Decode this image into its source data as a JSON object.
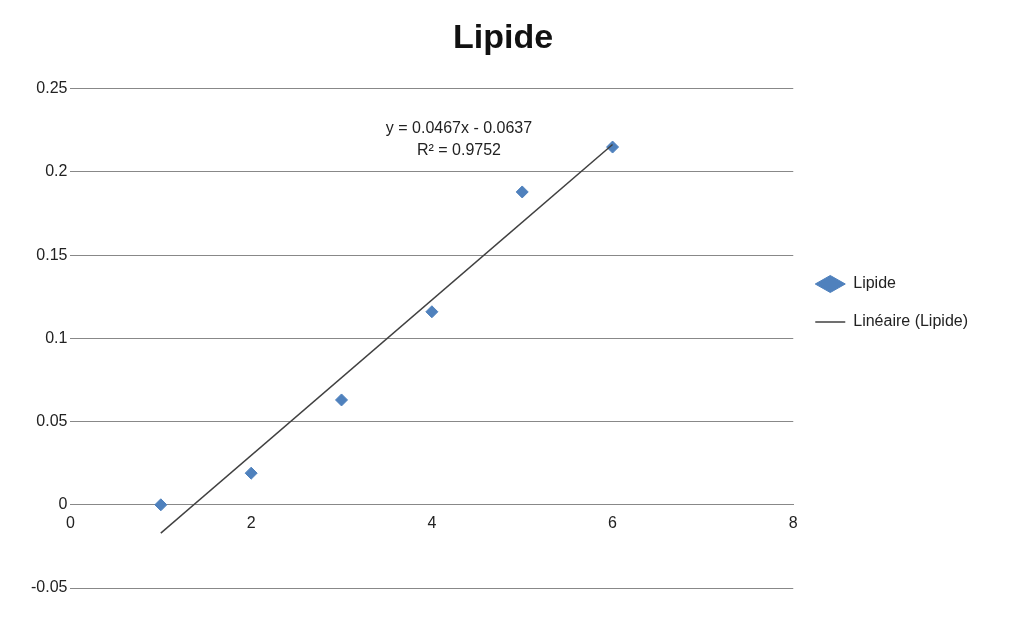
{
  "chart_data": {
    "type": "scatter",
    "title": "Lipide",
    "legend": "right",
    "grid": "y",
    "series": [
      {
        "name": "Lipide",
        "marker": "diamond",
        "color": "#4f81bd",
        "x": [
          1,
          2,
          3,
          4,
          5,
          6
        ],
        "values": [
          0,
          0.019,
          0.063,
          0.116,
          0.188,
          0.215
        ]
      },
      {
        "name": "Linéaire (Lipide)",
        "type": "line",
        "color": "#404040",
        "x": [
          1,
          6
        ],
        "values": [
          -0.017,
          0.2165
        ],
        "marker": "none",
        "line_style": "solid"
      }
    ],
    "annotations": [
      "y = 0.0467x - 0.0637",
      "R² = 0.9752"
    ],
    "xlim": [
      0,
      8
    ],
    "xticks": [
      0,
      2,
      4,
      6,
      8
    ],
    "ylim": [
      -0.05,
      0.25
    ],
    "yticks": [
      -0.05,
      0,
      0.05,
      0.1,
      0.15,
      0.2,
      0.25
    ]
  }
}
